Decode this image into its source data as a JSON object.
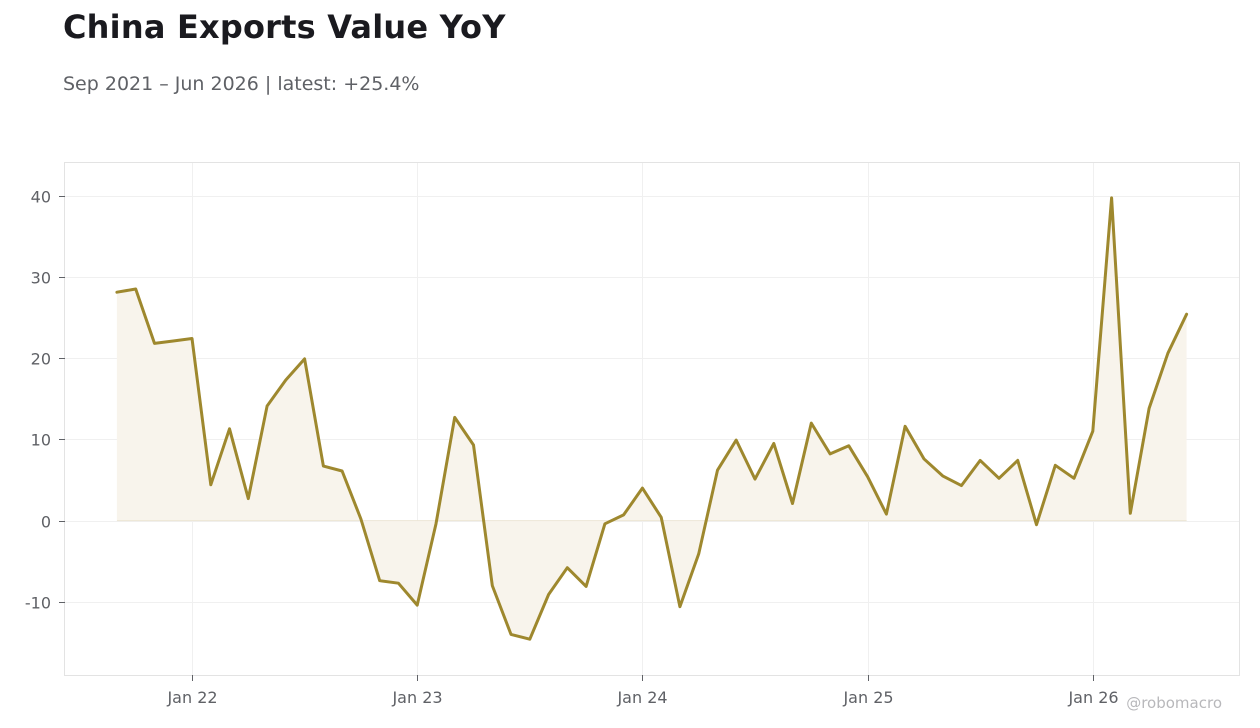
{
  "chart_data": {
    "type": "line",
    "title": "China Exports Value YoY",
    "subtitle": "Sep 2021 – Jun 2026 | latest: +25.4%",
    "watermark": "@robomacro",
    "xlabel": "",
    "ylabel": "",
    "ylim": [
      -19,
      44
    ],
    "yticks": [
      40,
      30,
      20,
      10,
      0,
      -10
    ],
    "ytick_labels": [
      "40",
      "30",
      "20",
      "10",
      "0",
      "-10"
    ],
    "xticks": [
      {
        "label": "Jan 22",
        "date": "2022-01"
      },
      {
        "label": "Jan 23",
        "date": "2023-01"
      },
      {
        "label": "Jan 24",
        "date": "2024-01"
      },
      {
        "label": "Jan 25",
        "date": "2025-01"
      },
      {
        "label": "Jan 26",
        "date": "2026-01"
      }
    ],
    "grid": true,
    "line_color": "#9e882e",
    "fill_color": "#f8f4ec",
    "series": [
      {
        "x": [
          "2021-09",
          "2021-10",
          "2021-11",
          "2021-12",
          "2022-01",
          "2022-02",
          "2022-03",
          "2022-04",
          "2022-05",
          "2022-06",
          "2022-07",
          "2022-08",
          "2022-09",
          "2022-10",
          "2022-11",
          "2022-12",
          "2023-01",
          "2023-02",
          "2023-03",
          "2023-04",
          "2023-05",
          "2023-06",
          "2023-07",
          "2023-08",
          "2023-09",
          "2023-10",
          "2023-11",
          "2023-12",
          "2024-01",
          "2024-02",
          "2024-03",
          "2024-04",
          "2024-05",
          "2024-06",
          "2024-07",
          "2024-08",
          "2024-09",
          "2024-10",
          "2024-11",
          "2024-12",
          "2025-01",
          "2025-02",
          "2025-03",
          "2025-04",
          "2025-05",
          "2025-06",
          "2025-07",
          "2025-08",
          "2025-09",
          "2025-10",
          "2025-11",
          "2025-12",
          "2026-01",
          "2026-02",
          "2026-03",
          "2026-04",
          "2026-05",
          "2026-06"
        ],
        "values": [
          28.1,
          28.5,
          21.8,
          22.1,
          22.4,
          4.4,
          11.3,
          2.7,
          14.1,
          17.3,
          19.9,
          6.7,
          6.1,
          0.2,
          -7.4,
          -7.7,
          -10.4,
          -0.4,
          12.7,
          9.3,
          -8.0,
          -14.0,
          -14.6,
          -9.1,
          -5.8,
          -8.1,
          -0.4,
          0.7,
          4.0,
          0.4,
          -10.6,
          -4.1,
          6.2,
          9.9,
          5.1,
          9.5,
          2.1,
          12.0,
          8.2,
          9.2,
          5.4,
          0.8,
          11.6,
          7.6,
          5.5,
          4.3,
          7.4,
          5.2,
          7.4,
          -0.5,
          6.8,
          5.2,
          11.0,
          39.7,
          0.9,
          13.8,
          20.6,
          25.4
        ]
      }
    ]
  }
}
